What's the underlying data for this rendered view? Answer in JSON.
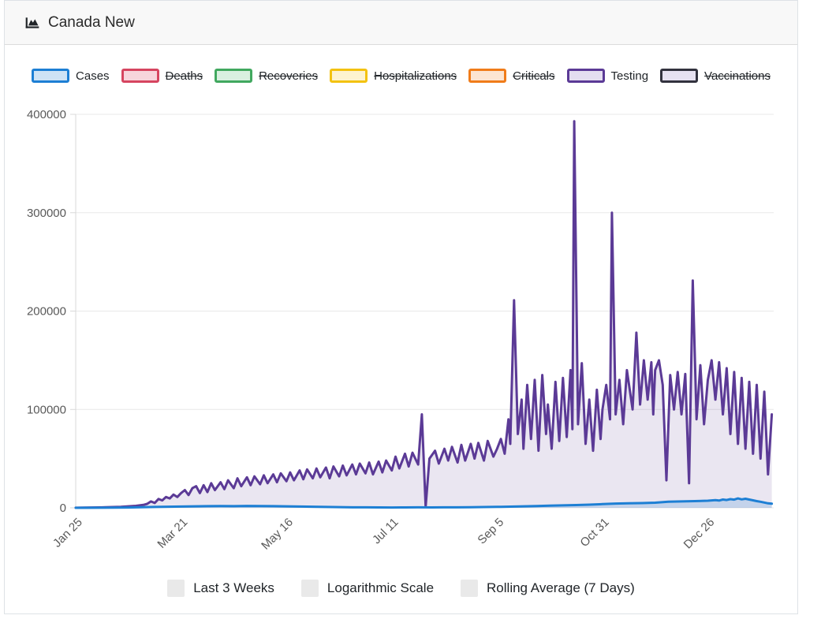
{
  "header": {
    "title": "Canada New",
    "icon": "area-chart-icon"
  },
  "legend": {
    "items": [
      {
        "label": "Cases",
        "border": "#1d7fd4",
        "fill": "#cfe3f5",
        "active": true
      },
      {
        "label": "Deaths",
        "border": "#d64560",
        "fill": "#f7d5dc",
        "active": false
      },
      {
        "label": "Recoveries",
        "border": "#41a85f",
        "fill": "#d9f0e0",
        "active": false
      },
      {
        "label": "Hospitalizations",
        "border": "#f3c211",
        "fill": "#fdf3d0",
        "active": false
      },
      {
        "label": "Criticals",
        "border": "#f07c1a",
        "fill": "#fce5d2",
        "active": false
      },
      {
        "label": "Testing",
        "border": "#5b3a96",
        "fill": "#e4def0",
        "active": true
      },
      {
        "label": "Vaccinations",
        "border": "#32323e",
        "fill": "#e6e1f1",
        "active": false
      }
    ]
  },
  "controls": {
    "items": [
      {
        "label": "Last 3 Weeks",
        "checked": false
      },
      {
        "label": "Logarithmic Scale",
        "checked": false
      },
      {
        "label": "Rolling Average (7 Days)",
        "checked": false
      }
    ]
  },
  "chart_data": {
    "type": "area",
    "title": "Canada New",
    "grid": true,
    "legend_position": "top",
    "x_axis": {
      "unit": "days since Jan 25",
      "range": [
        0,
        371
      ],
      "ticks": [
        {
          "day": 0,
          "label": "Jan 25"
        },
        {
          "day": 56,
          "label": "Mar 21"
        },
        {
          "day": 112,
          "label": "May 16"
        },
        {
          "day": 168,
          "label": "Jul 11"
        },
        {
          "day": 224,
          "label": "Sep 5"
        },
        {
          "day": 280,
          "label": "Oct 31"
        },
        {
          "day": 336,
          "label": "Dec 26"
        }
      ]
    },
    "y_axis": {
      "range": [
        0,
        400000
      ],
      "ticks": [
        0,
        100000,
        200000,
        300000,
        400000
      ]
    },
    "series": [
      {
        "name": "Testing",
        "color": "#5b3a96",
        "fill": "rgba(91,58,150,0.13)",
        "points": [
          [
            0,
            100
          ],
          [
            4,
            200
          ],
          [
            8,
            300
          ],
          [
            12,
            400
          ],
          [
            16,
            600
          ],
          [
            20,
            800
          ],
          [
            24,
            1000
          ],
          [
            28,
            1500
          ],
          [
            32,
            2000
          ],
          [
            36,
            3000
          ],
          [
            38,
            4000
          ],
          [
            40,
            6500
          ],
          [
            42,
            5000
          ],
          [
            44,
            9000
          ],
          [
            46,
            7500
          ],
          [
            48,
            11000
          ],
          [
            50,
            9500
          ],
          [
            52,
            13500
          ],
          [
            54,
            11000
          ],
          [
            56,
            15000
          ],
          [
            58,
            18000
          ],
          [
            60,
            13000
          ],
          [
            62,
            20000
          ],
          [
            64,
            22000
          ],
          [
            66,
            15000
          ],
          [
            68,
            23000
          ],
          [
            70,
            16000
          ],
          [
            72,
            25000
          ],
          [
            74,
            18000
          ],
          [
            77,
            26000
          ],
          [
            79,
            19000
          ],
          [
            81,
            28000
          ],
          [
            84,
            20000
          ],
          [
            86,
            30000
          ],
          [
            88,
            22000
          ],
          [
            91,
            31000
          ],
          [
            93,
            23000
          ],
          [
            95,
            32000
          ],
          [
            98,
            24000
          ],
          [
            100,
            33000
          ],
          [
            102,
            25000
          ],
          [
            105,
            34000
          ],
          [
            107,
            26000
          ],
          [
            109,
            35000
          ],
          [
            112,
            27000
          ],
          [
            114,
            36000
          ],
          [
            116,
            28000
          ],
          [
            119,
            38000
          ],
          [
            121,
            29000
          ],
          [
            123,
            39000
          ],
          [
            126,
            30000
          ],
          [
            128,
            40000
          ],
          [
            130,
            31000
          ],
          [
            133,
            41000
          ],
          [
            135,
            30000
          ],
          [
            137,
            42000
          ],
          [
            140,
            32000
          ],
          [
            142,
            43000
          ],
          [
            144,
            33000
          ],
          [
            147,
            44000
          ],
          [
            149,
            34000
          ],
          [
            151,
            45000
          ],
          [
            154,
            35000
          ],
          [
            156,
            46000
          ],
          [
            158,
            34000
          ],
          [
            161,
            47000
          ],
          [
            163,
            36000
          ],
          [
            165,
            48000
          ],
          [
            168,
            38000
          ],
          [
            170,
            52000
          ],
          [
            172,
            40000
          ],
          [
            175,
            55000
          ],
          [
            177,
            42000
          ],
          [
            179,
            56000
          ],
          [
            182,
            44000
          ],
          [
            184,
            95000
          ],
          [
            186,
            1000
          ],
          [
            188,
            50000
          ],
          [
            191,
            58000
          ],
          [
            193,
            45000
          ],
          [
            196,
            60000
          ],
          [
            198,
            48000
          ],
          [
            200,
            62000
          ],
          [
            203,
            46000
          ],
          [
            205,
            64000
          ],
          [
            207,
            48000
          ],
          [
            210,
            65000
          ],
          [
            212,
            50000
          ],
          [
            214,
            66000
          ],
          [
            217,
            48000
          ],
          [
            219,
            68000
          ],
          [
            222,
            52000
          ],
          [
            224,
            60000
          ],
          [
            226,
            70000
          ],
          [
            228,
            55000
          ],
          [
            230,
            90000
          ],
          [
            231,
            65000
          ],
          [
            233,
            211000
          ],
          [
            235,
            75000
          ],
          [
            237,
            110000
          ],
          [
            238,
            60000
          ],
          [
            240,
            125000
          ],
          [
            242,
            70000
          ],
          [
            244,
            130000
          ],
          [
            246,
            58000
          ],
          [
            248,
            135000
          ],
          [
            250,
            75000
          ],
          [
            251,
            105000
          ],
          [
            253,
            60000
          ],
          [
            255,
            128000
          ],
          [
            257,
            68000
          ],
          [
            259,
            132000
          ],
          [
            261,
            72000
          ],
          [
            263,
            140000
          ],
          [
            264,
            80000
          ],
          [
            265,
            393000
          ],
          [
            267,
            85000
          ],
          [
            269,
            147000
          ],
          [
            271,
            65000
          ],
          [
            273,
            110000
          ],
          [
            275,
            58000
          ],
          [
            277,
            120000
          ],
          [
            279,
            70000
          ],
          [
            280,
            100000
          ],
          [
            282,
            125000
          ],
          [
            284,
            90000
          ],
          [
            285,
            300000
          ],
          [
            287,
            95000
          ],
          [
            289,
            130000
          ],
          [
            291,
            85000
          ],
          [
            293,
            140000
          ],
          [
            296,
            100000
          ],
          [
            298,
            178000
          ],
          [
            300,
            105000
          ],
          [
            302,
            150000
          ],
          [
            304,
            110000
          ],
          [
            306,
            148000
          ],
          [
            307,
            95000
          ],
          [
            308,
            140000
          ],
          [
            310,
            150000
          ],
          [
            312,
            125000
          ],
          [
            314,
            28000
          ],
          [
            316,
            135000
          ],
          [
            318,
            100000
          ],
          [
            320,
            138000
          ],
          [
            322,
            95000
          ],
          [
            324,
            136000
          ],
          [
            326,
            25000
          ],
          [
            328,
            231000
          ],
          [
            330,
            90000
          ],
          [
            332,
            145000
          ],
          [
            334,
            85000
          ],
          [
            336,
            130000
          ],
          [
            338,
            150000
          ],
          [
            340,
            110000
          ],
          [
            342,
            148000
          ],
          [
            344,
            95000
          ],
          [
            346,
            142000
          ],
          [
            348,
            75000
          ],
          [
            350,
            138000
          ],
          [
            352,
            65000
          ],
          [
            354,
            132000
          ],
          [
            356,
            60000
          ],
          [
            358,
            128000
          ],
          [
            360,
            55000
          ],
          [
            362,
            125000
          ],
          [
            364,
            50000
          ],
          [
            366,
            118000
          ],
          [
            368,
            34000
          ],
          [
            370,
            95000
          ]
        ]
      },
      {
        "name": "Cases",
        "color": "#1d7fd4",
        "fill": "rgba(29,127,212,0.18)",
        "points": [
          [
            0,
            0
          ],
          [
            14,
            100
          ],
          [
            28,
            300
          ],
          [
            42,
            900
          ],
          [
            56,
            1300
          ],
          [
            63,
            1500
          ],
          [
            70,
            1700
          ],
          [
            77,
            1800
          ],
          [
            84,
            1700
          ],
          [
            91,
            1900
          ],
          [
            98,
            1800
          ],
          [
            105,
            1700
          ],
          [
            112,
            1500
          ],
          [
            119,
            1300
          ],
          [
            126,
            1100
          ],
          [
            133,
            900
          ],
          [
            140,
            700
          ],
          [
            147,
            500
          ],
          [
            154,
            450
          ],
          [
            161,
            400
          ],
          [
            168,
            350
          ],
          [
            175,
            400
          ],
          [
            182,
            450
          ],
          [
            189,
            400
          ],
          [
            196,
            450
          ],
          [
            203,
            500
          ],
          [
            210,
            600
          ],
          [
            217,
            800
          ],
          [
            224,
            1000
          ],
          [
            231,
            1200
          ],
          [
            238,
            1500
          ],
          [
            245,
            1800
          ],
          [
            252,
            2200
          ],
          [
            259,
            2500
          ],
          [
            266,
            2800
          ],
          [
            273,
            3200
          ],
          [
            280,
            3800
          ],
          [
            287,
            4300
          ],
          [
            294,
            4600
          ],
          [
            301,
            4800
          ],
          [
            308,
            5200
          ],
          [
            315,
            6200
          ],
          [
            322,
            6500
          ],
          [
            329,
            6800
          ],
          [
            336,
            7200
          ],
          [
            340,
            7800
          ],
          [
            342,
            7400
          ],
          [
            344,
            8400
          ],
          [
            346,
            7900
          ],
          [
            348,
            8800
          ],
          [
            350,
            8300
          ],
          [
            352,
            9500
          ],
          [
            354,
            8600
          ],
          [
            356,
            9200
          ],
          [
            358,
            8400
          ],
          [
            360,
            7600
          ],
          [
            362,
            6800
          ],
          [
            364,
            6200
          ],
          [
            366,
            5400
          ],
          [
            368,
            4600
          ],
          [
            370,
            4200
          ]
        ]
      }
    ]
  },
  "style": {
    "grid_color": "#e8e8e8",
    "axis_color": "#d9d9d9",
    "tick_text_color": "#595959"
  }
}
